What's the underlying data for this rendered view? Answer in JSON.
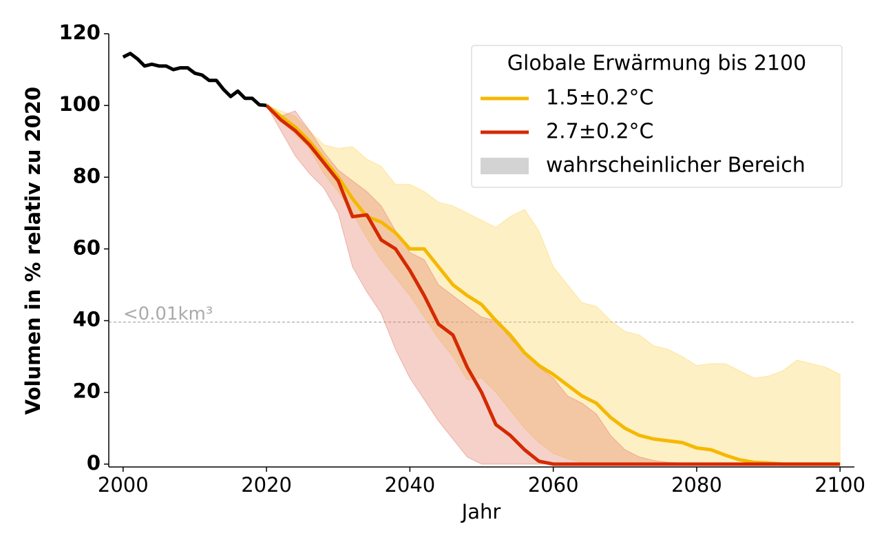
{
  "chart_data": {
    "type": "line",
    "xlabel": "Jahr",
    "ylabel": "Volumen in % relativ zu 2020",
    "xlim": [
      1998,
      2102
    ],
    "ylim": [
      -0.8,
      120
    ],
    "xticks": [
      2000,
      2020,
      2040,
      2060,
      2080,
      2100
    ],
    "yticks": [
      0,
      20,
      40,
      60,
      80,
      100,
      120
    ],
    "legend": {
      "title": "Globale Erwärmung bis 2100",
      "loc": "upper right",
      "band_label": "wahrscheinlicher Bereich",
      "band_color": "#d3d3d3"
    },
    "historical": {
      "color": "#000000",
      "x": [
        2000,
        2001,
        2002,
        2003,
        2004,
        2005,
        2006,
        2007,
        2008,
        2009,
        2010,
        2011,
        2012,
        2013,
        2014,
        2015,
        2016,
        2017,
        2018,
        2019,
        2020
      ],
      "values": [
        113.5,
        114.5,
        113,
        111,
        111.5,
        111,
        111,
        110,
        110.5,
        110.5,
        109,
        108.5,
        107,
        107,
        104.5,
        102.5,
        104,
        102,
        102,
        100.2,
        100
      ]
    },
    "x": [
      2020,
      2022,
      2024,
      2026,
      2028,
      2030,
      2032,
      2034,
      2036,
      2038,
      2040,
      2042,
      2044,
      2046,
      2048,
      2050,
      2052,
      2054,
      2056,
      2058,
      2060,
      2062,
      2064,
      2066,
      2068,
      2070,
      2072,
      2074,
      2076,
      2078,
      2080,
      2082,
      2084,
      2086,
      2088,
      2090,
      2092,
      2094,
      2096,
      2098,
      2100
    ],
    "series": [
      {
        "name": "1.5±0.2°C",
        "color": "#f5b800",
        "band_color": "#fdd55a",
        "values": [
          100,
          97,
          94,
          90,
          85,
          80,
          74,
          69,
          67.5,
          64.5,
          60,
          60,
          55,
          50,
          47,
          44.5,
          40,
          36,
          31,
          27.5,
          25,
          22,
          19,
          17,
          13,
          10,
          8,
          7,
          6.5,
          6,
          4.5,
          4,
          2.5,
          1.2,
          0.5,
          0.3,
          0,
          0,
          0,
          0,
          0
        ],
        "upper": [
          100,
          98.5,
          97,
          93,
          89,
          88,
          88.5,
          85,
          83,
          78,
          78,
          76,
          73,
          72,
          70,
          68,
          66,
          69,
          71,
          65,
          55,
          50,
          45,
          44,
          40,
          37,
          36,
          33,
          32,
          30,
          27.5,
          28,
          28,
          26,
          24,
          24.5,
          26,
          29,
          28,
          27,
          25
        ],
        "lower": [
          100,
          96,
          92,
          88,
          81,
          76,
          70,
          63,
          57,
          52,
          47,
          41,
          35,
          30,
          23.5,
          24,
          20,
          15,
          10,
          6,
          3,
          1.5,
          0.5,
          0,
          0,
          0,
          0,
          0,
          0,
          0,
          0,
          0,
          0,
          0,
          0,
          0,
          0,
          0,
          0,
          0,
          0
        ]
      },
      {
        "name": "2.7±0.2°C",
        "color": "#d42a00",
        "band_color": "#e27a68",
        "values": [
          100,
          96,
          93,
          89,
          84,
          79,
          69,
          69.5,
          62.5,
          60,
          54,
          47,
          39,
          36,
          27,
          20,
          11,
          8,
          4,
          0.8,
          0,
          0,
          0,
          0,
          0,
          0,
          0,
          0,
          0,
          0,
          0,
          0,
          0,
          0,
          0,
          0,
          0,
          0,
          0,
          0,
          0
        ],
        "upper": [
          100,
          97,
          98.5,
          93,
          87,
          82,
          79,
          76,
          72,
          65,
          59,
          57,
          50,
          47,
          44,
          41,
          40,
          35,
          31,
          27,
          24,
          19,
          17,
          14,
          8,
          4,
          2,
          1,
          0.5,
          0.3,
          0,
          0,
          0,
          0,
          0,
          0,
          0,
          0,
          0,
          0,
          0
        ],
        "lower": [
          100,
          93,
          86,
          81,
          77,
          70,
          55,
          48,
          42,
          32,
          24,
          18,
          12,
          7,
          2,
          0,
          0,
          0,
          0,
          0,
          0,
          0,
          0,
          0,
          0,
          0,
          0,
          0,
          0,
          0,
          0,
          0,
          0,
          0,
          0,
          0,
          0,
          0,
          0,
          0,
          0
        ]
      }
    ],
    "reference": {
      "value": 39.6,
      "label": "<0.01km³",
      "color": "#aaaaaa"
    }
  }
}
